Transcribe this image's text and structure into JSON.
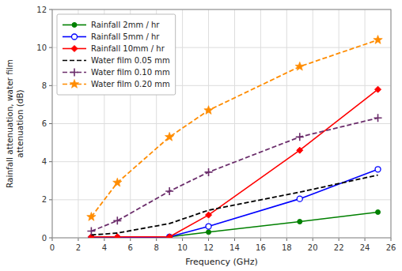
{
  "chart_data": {
    "type": "line",
    "x_label": "Frequency (GHz)",
    "y_label": "Rainfall attenuation, water film\nattenuation (dB)",
    "x": [
      3,
      5,
      9,
      12,
      19,
      25
    ],
    "series": [
      {
        "name": "Rainfall  2mm / hr",
        "color": "#008000",
        "marker": "circle",
        "line_style": "solid",
        "values": [
          0.0,
          0.0,
          0.05,
          0.3,
          0.85,
          1.35
        ]
      },
      {
        "name": "Rainfall  5mm / hr",
        "color": "#0000FF",
        "marker": "open-circle",
        "line_style": "solid",
        "values": [
          0.0,
          0.0,
          0.05,
          0.6,
          2.05,
          3.6
        ]
      },
      {
        "name": "Rainfall  10mm / hr",
        "color": "#FF0000",
        "marker": "diamond",
        "line_style": "solid",
        "values": [
          0.05,
          0.05,
          0.05,
          1.2,
          4.6,
          7.8
        ]
      },
      {
        "name": "Water film  0.05 mm",
        "color": "#000000",
        "marker": "none",
        "line_style": "dashed",
        "values": [
          0.15,
          0.25,
          0.75,
          1.45,
          2.4,
          3.3
        ]
      },
      {
        "name": "Water film  0.10 mm",
        "color": "#6B2D6B",
        "marker": "plus",
        "line_style": "dashed",
        "values": [
          0.35,
          0.9,
          2.45,
          3.45,
          5.3,
          6.3
        ]
      },
      {
        "name": "Water film  0.20 mm",
        "color": "#FF8C00",
        "marker": "star",
        "line_style": "dashed",
        "values": [
          1.1,
          2.9,
          5.3,
          6.7,
          9.0,
          10.4
        ]
      }
    ],
    "xlim": [
      0,
      26
    ],
    "ylim": [
      0,
      12
    ],
    "xticks": [
      0,
      2,
      4,
      6,
      8,
      10,
      12,
      14,
      16,
      18,
      20,
      22,
      24,
      26
    ],
    "yticks": [
      0,
      2,
      4,
      6,
      8,
      10,
      12
    ],
    "grid": true,
    "legend": "upper left"
  }
}
